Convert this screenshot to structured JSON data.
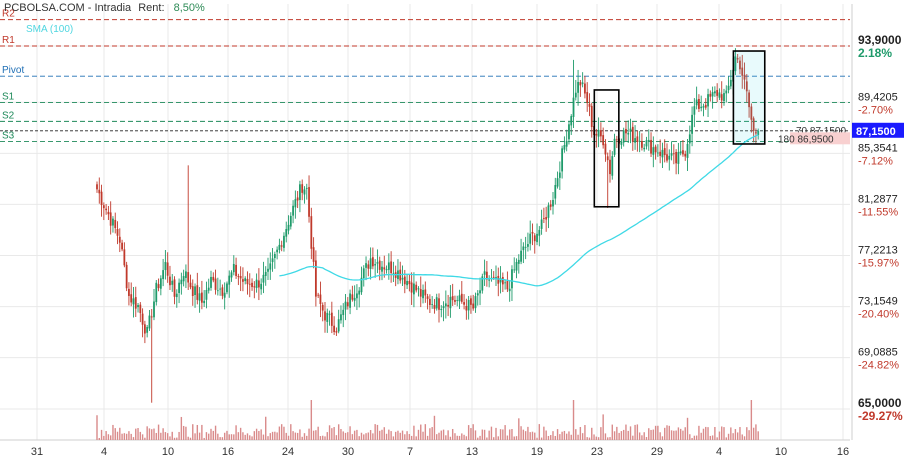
{
  "header": {
    "title": "PCBOLSA.COM - Intradia",
    "rent_label": "Rent:",
    "rent_value": "8,50%"
  },
  "colors": {
    "up": "#1e9a6a",
    "down": "#c0392b",
    "sma": "#3fd9e6",
    "pivot_red": "#c0392b",
    "pivot_blue": "#1f6fb5",
    "pivot_green": "#1e8a5a",
    "last_price_bg": "#1a1aff",
    "volume": "#d98a8a",
    "grid": "#e9e9e9"
  },
  "chart_data": {
    "type": "candlestick",
    "indicator_label": "SMA (100)",
    "x_tick_labels": [
      "31",
      "4",
      "10",
      "16",
      "24",
      "30",
      "7",
      "13",
      "19",
      "23",
      "29",
      "4",
      "10",
      "16"
    ],
    "y_tick_labels": [
      {
        "price": "93,9000",
        "pct": "2.18%"
      },
      {
        "price": "89,4205",
        "pct": "-2.70%"
      },
      {
        "price": "85,3541",
        "pct": "-7.12%"
      },
      {
        "price": "81,2877",
        "pct": "-11.55%"
      },
      {
        "price": "77,2213",
        "pct": "-15.97%"
      },
      {
        "price": "73,1549",
        "pct": "-20.40%"
      },
      {
        "price": "69,0885",
        "pct": "-24.82%"
      },
      {
        "price": "65,0000",
        "pct": "-29.27%"
      }
    ],
    "ylim": [
      65.0,
      93.9
    ],
    "levels": [
      {
        "name": "R2",
        "value": 96.0
      },
      {
        "name": "R1",
        "value": 93.9
      },
      {
        "name": "Pivot",
        "value": 91.5
      },
      {
        "name": "S1",
        "value": 89.4
      },
      {
        "name": "S2",
        "value": 87.9
      },
      {
        "name": "S3",
        "value": 86.3
      }
    ],
    "last_price": {
      "value": 87.15,
      "label": "87,1500",
      "qty": "70",
      "qty_price": "87,1500"
    },
    "bid": {
      "value": 86.95,
      "qty": "180",
      "price": "86,9500"
    },
    "waypoints": [
      [
        0,
        82.5
      ],
      [
        5,
        80.5
      ],
      [
        10,
        78.5
      ],
      [
        14,
        74.0
      ],
      [
        18,
        73.2
      ],
      [
        22,
        71.0
      ],
      [
        26,
        74.5
      ],
      [
        30,
        76.5
      ],
      [
        34,
        74.0
      ],
      [
        38,
        76.0
      ],
      [
        42,
        74.5
      ],
      [
        46,
        73.5
      ],
      [
        50,
        75.2
      ],
      [
        55,
        74.5
      ],
      [
        60,
        76.0
      ],
      [
        65,
        75.0
      ],
      [
        70,
        75.0
      ],
      [
        75,
        75.6
      ],
      [
        80,
        78.0
      ],
      [
        85,
        80.5
      ],
      [
        90,
        82.8
      ],
      [
        92,
        82.5
      ],
      [
        96,
        74.0
      ],
      [
        100,
        72.5
      ],
      [
        105,
        71.5
      ],
      [
        110,
        73.5
      ],
      [
        115,
        75.0
      ],
      [
        120,
        77.0
      ],
      [
        125,
        76.5
      ],
      [
        130,
        76.2
      ],
      [
        135,
        75.4
      ],
      [
        140,
        74.5
      ],
      [
        145,
        73.6
      ],
      [
        150,
        73.4
      ],
      [
        155,
        73.8
      ],
      [
        160,
        73.5
      ],
      [
        165,
        73.0
      ],
      [
        170,
        75.5
      ],
      [
        175,
        75.0
      ],
      [
        180,
        74.6
      ],
      [
        185,
        77.0
      ],
      [
        190,
        78.5
      ],
      [
        195,
        79.5
      ],
      [
        200,
        82.0
      ],
      [
        205,
        86.0
      ],
      [
        210,
        90.5
      ],
      [
        212,
        91.0
      ],
      [
        215,
        89.5
      ],
      [
        218,
        87.0
      ],
      [
        222,
        86.5
      ],
      [
        225,
        84.0
      ],
      [
        227,
        86.5
      ],
      [
        232,
        87.0
      ],
      [
        237,
        86.6
      ],
      [
        242,
        86.0
      ],
      [
        246,
        85.6
      ],
      [
        250,
        85.1
      ],
      [
        254,
        84.7
      ],
      [
        258,
        85.6
      ],
      [
        262,
        89.0
      ],
      [
        267,
        89.4
      ],
      [
        272,
        90.2
      ],
      [
        276,
        89.8
      ],
      [
        280,
        93.0
      ],
      [
        282,
        92.5
      ],
      [
        285,
        90.0
      ],
      [
        288,
        87.0
      ],
      [
        290,
        87.15
      ]
    ],
    "spikes": [
      {
        "index": 24,
        "low": 65.5
      },
      {
        "index": 40,
        "high": 84.4
      },
      {
        "index": 209,
        "high": 92.8
      },
      {
        "index": 224,
        "low": 81.0
      }
    ],
    "highlight_boxes": [
      {
        "from": 219,
        "to": 228,
        "low": 81.1,
        "high": 90.4
      },
      {
        "from": 280,
        "to": 292,
        "low": 86.1,
        "high": 93.5
      }
    ]
  }
}
